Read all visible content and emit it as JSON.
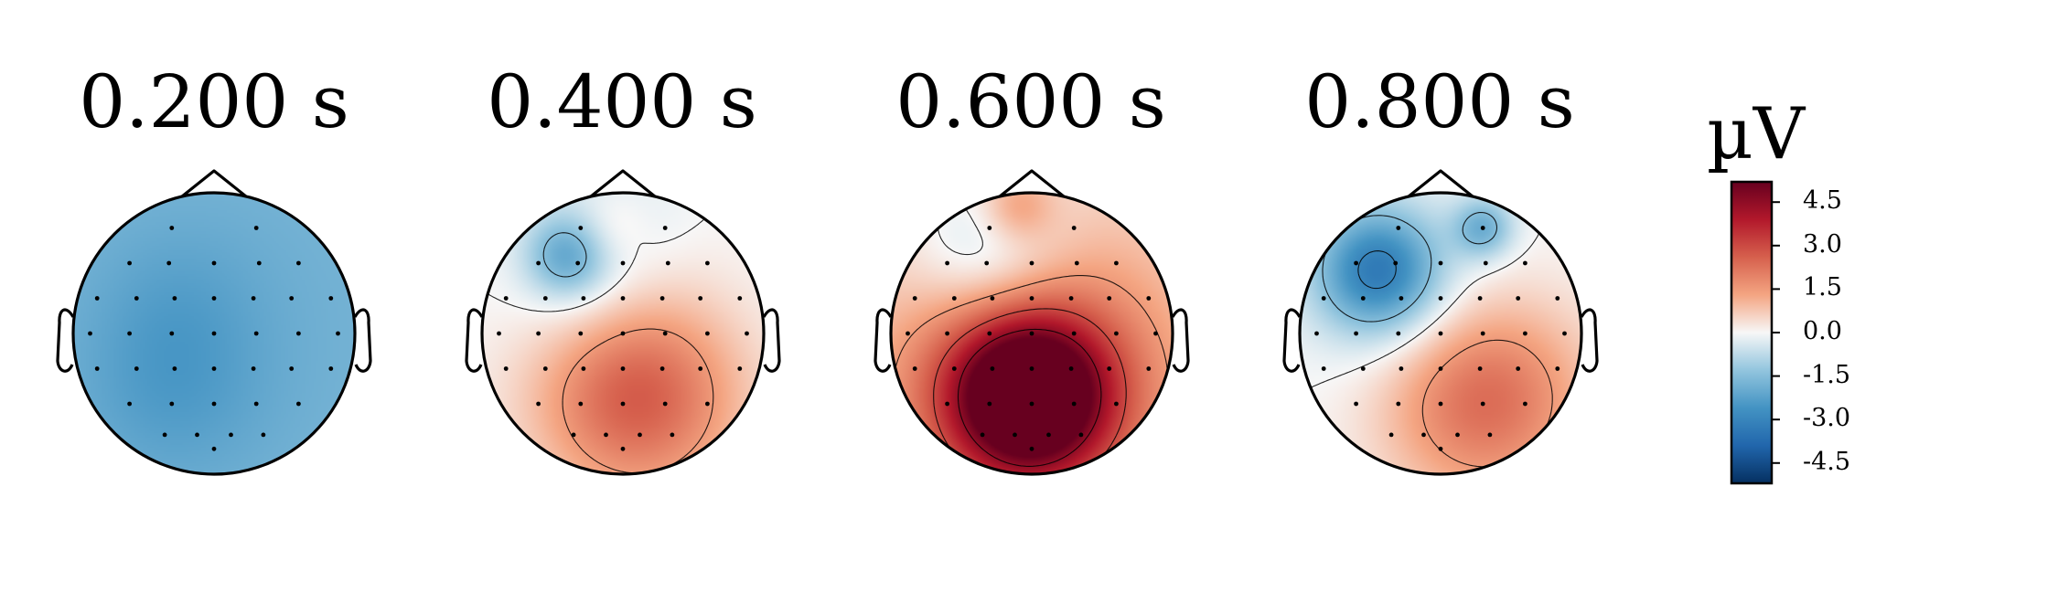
{
  "chart_data": {
    "type": "heatmap",
    "description": "EEG scalp topographic maps",
    "titles": [
      "0.200 s",
      "0.400 s",
      "0.600 s",
      "0.800 s"
    ],
    "colorbar": {
      "label": "µV",
      "ticks": [
        "4.5",
        "3.0",
        "1.5",
        "0.0",
        "-1.5",
        "-3.0",
        "-4.5"
      ],
      "tick_values": [
        4.5,
        3.0,
        1.5,
        0.0,
        -1.5,
        -3.0,
        -4.5
      ],
      "range": [
        -5.2,
        5.2
      ],
      "colormap": "RdBu_r",
      "colors": {
        "negative": "#053061",
        "zero": "#f7f7f7",
        "positive": "#67001f"
      }
    },
    "maps": [
      {
        "time": "0.200 s",
        "sources": [
          {
            "x": 0.0,
            "y": 0.0,
            "amp": -1.9,
            "sigma": 3.0
          },
          {
            "x": -0.3,
            "y": -0.4,
            "amp": -0.5,
            "sigma": 0.45
          },
          {
            "x": -0.25,
            "y": 0.2,
            "amp": -0.3,
            "sigma": 0.4
          }
        ]
      },
      {
        "time": "0.400 s",
        "sources": [
          {
            "x": 0.1,
            "y": -0.45,
            "amp": 2.7,
            "sigma": 0.5
          },
          {
            "x": -0.4,
            "y": 0.55,
            "amp": -1.7,
            "sigma": 0.2
          },
          {
            "x": -0.15,
            "y": 0.75,
            "amp": -0.6,
            "sigma": 0.35
          },
          {
            "x": -0.1,
            "y": 0.75,
            "amp": 0.7,
            "sigma": 0.2
          },
          {
            "x": -0.3,
            "y": 0.25,
            "amp": -0.4,
            "sigma": 0.35
          }
        ]
      },
      {
        "time": "0.600 s",
        "sources": [
          {
            "x": -0.02,
            "y": -0.45,
            "amp": 6.0,
            "sigma": 0.4
          },
          {
            "x": 0.0,
            "y": -0.3,
            "amp": 2.2,
            "sigma": 0.9
          },
          {
            "x": -0.3,
            "y": 0.55,
            "amp": -1.5,
            "sigma": 0.4
          },
          {
            "x": -0.1,
            "y": 0.9,
            "amp": 1.2,
            "sigma": 0.18
          }
        ]
      },
      {
        "time": "0.800 s",
        "sources": [
          {
            "x": -0.45,
            "y": 0.45,
            "amp": -3.0,
            "sigma": 0.3
          },
          {
            "x": 0.3,
            "y": 0.75,
            "amp": -1.8,
            "sigma": 0.15
          },
          {
            "x": 0.3,
            "y": -0.45,
            "amp": 2.5,
            "sigma": 0.5
          },
          {
            "x": -0.2,
            "y": 0.2,
            "amp": -0.6,
            "sigma": 0.5
          }
        ]
      }
    ],
    "sensors": [
      [
        -0.3,
        0.75
      ],
      [
        0.3,
        0.75
      ],
      [
        -0.6,
        0.5
      ],
      [
        -0.32,
        0.5
      ],
      [
        0.0,
        0.5
      ],
      [
        0.32,
        0.5
      ],
      [
        0.6,
        0.5
      ],
      [
        -0.83,
        0.25
      ],
      [
        -0.55,
        0.25
      ],
      [
        -0.28,
        0.25
      ],
      [
        0.0,
        0.25
      ],
      [
        0.28,
        0.25
      ],
      [
        0.55,
        0.25
      ],
      [
        0.83,
        0.25
      ],
      [
        -0.88,
        0.0
      ],
      [
        -0.6,
        0.0
      ],
      [
        -0.3,
        0.0
      ],
      [
        0.0,
        0.0
      ],
      [
        0.3,
        0.0
      ],
      [
        0.6,
        0.0
      ],
      [
        0.88,
        0.0
      ],
      [
        -0.83,
        -0.25
      ],
      [
        -0.55,
        -0.25
      ],
      [
        -0.28,
        -0.25
      ],
      [
        0.0,
        -0.25
      ],
      [
        0.28,
        -0.25
      ],
      [
        0.55,
        -0.25
      ],
      [
        0.83,
        -0.25
      ],
      [
        -0.6,
        -0.5
      ],
      [
        -0.3,
        -0.5
      ],
      [
        0.0,
        -0.5
      ],
      [
        0.3,
        -0.5
      ],
      [
        0.6,
        -0.5
      ],
      [
        -0.35,
        -0.72
      ],
      [
        -0.12,
        -0.72
      ],
      [
        0.12,
        -0.72
      ],
      [
        0.35,
        -0.72
      ],
      [
        0.0,
        -0.82
      ]
    ]
  }
}
